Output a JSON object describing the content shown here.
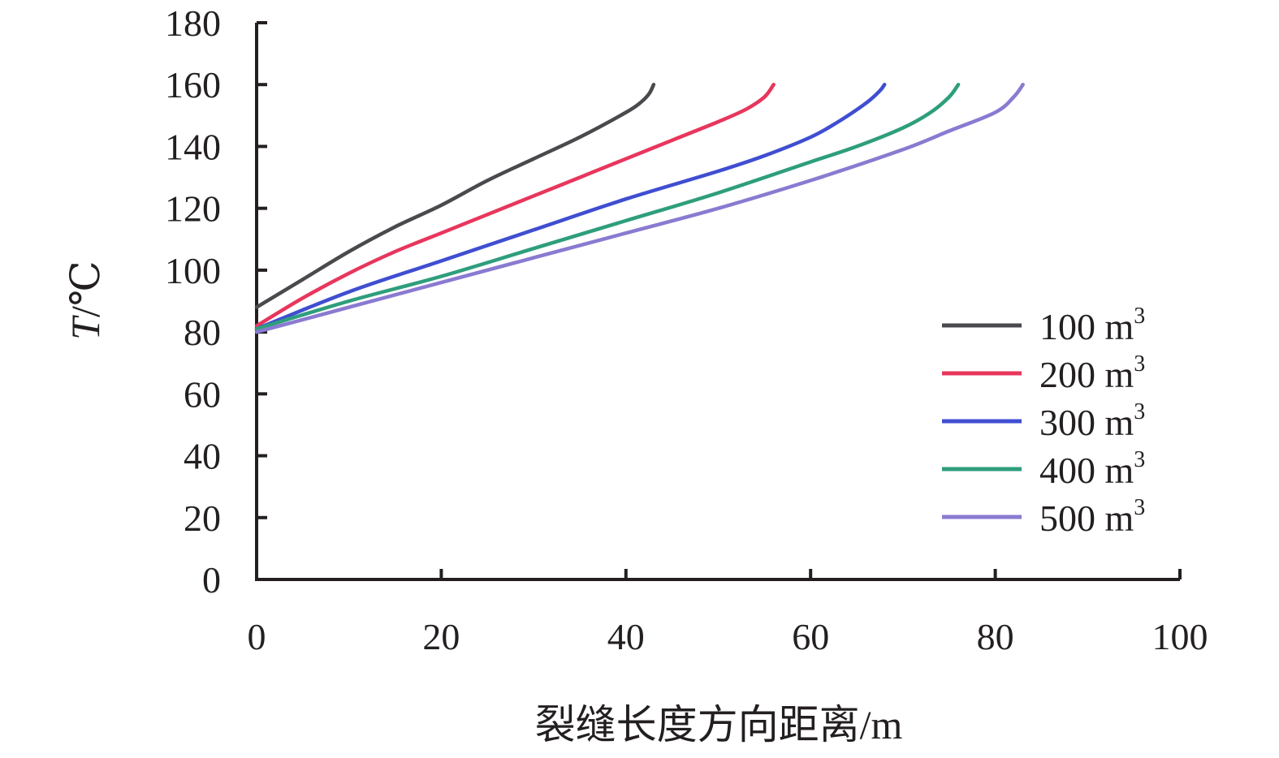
{
  "chart_data": {
    "type": "line",
    "xlabel": "裂缝长度方向距离/m",
    "ylabel_italic": "T",
    "ylabel_unit": "/℃",
    "xlim": [
      0,
      100
    ],
    "ylim": [
      0,
      180
    ],
    "xticks": [
      0,
      20,
      40,
      60,
      80,
      100
    ],
    "yticks": [
      0,
      20,
      40,
      60,
      80,
      100,
      120,
      140,
      160,
      180
    ],
    "grid": false,
    "legend_position": "right",
    "series": [
      {
        "name": "100 m",
        "name_sup": "3",
        "color": "#4a4a4e",
        "x": [
          0,
          5,
          10,
          15,
          20,
          25,
          30,
          35,
          40,
          41.5,
          42.5,
          43
        ],
        "y": [
          88,
          97,
          106,
          114,
          121,
          129,
          136,
          143,
          151,
          154,
          157,
          160
        ]
      },
      {
        "name": "200 m",
        "name_sup": "3",
        "color": "#e8365d",
        "x": [
          0,
          5,
          10,
          15,
          20,
          25,
          30,
          35,
          40,
          45,
          50,
          53,
          55,
          56
        ],
        "y": [
          82,
          91,
          99,
          106,
          112,
          118,
          124,
          130,
          136,
          142,
          148,
          152,
          156,
          160
        ]
      },
      {
        "name": "300 m",
        "name_sup": "3",
        "color": "#3f4ed1",
        "x": [
          0,
          10,
          20,
          30,
          40,
          50,
          55,
          60,
          63,
          66,
          67.5,
          68
        ],
        "y": [
          81,
          93,
          103,
          113,
          123,
          132,
          137,
          143,
          148,
          154,
          158,
          160
        ]
      },
      {
        "name": "400 m",
        "name_sup": "3",
        "color": "#2e9e7c",
        "x": [
          0,
          10,
          20,
          30,
          40,
          50,
          60,
          65,
          70,
          73,
          75,
          76
        ],
        "y": [
          81,
          90,
          98,
          107,
          116,
          125,
          135,
          140,
          146,
          151,
          156,
          160
        ]
      },
      {
        "name": "500 m",
        "name_sup": "3",
        "color": "#8a7ad1",
        "x": [
          0,
          10,
          20,
          30,
          40,
          50,
          60,
          70,
          75,
          80,
          82,
          83
        ],
        "y": [
          80,
          88,
          96,
          104,
          112,
          120,
          129,
          139,
          145,
          151,
          156,
          160
        ]
      }
    ]
  }
}
